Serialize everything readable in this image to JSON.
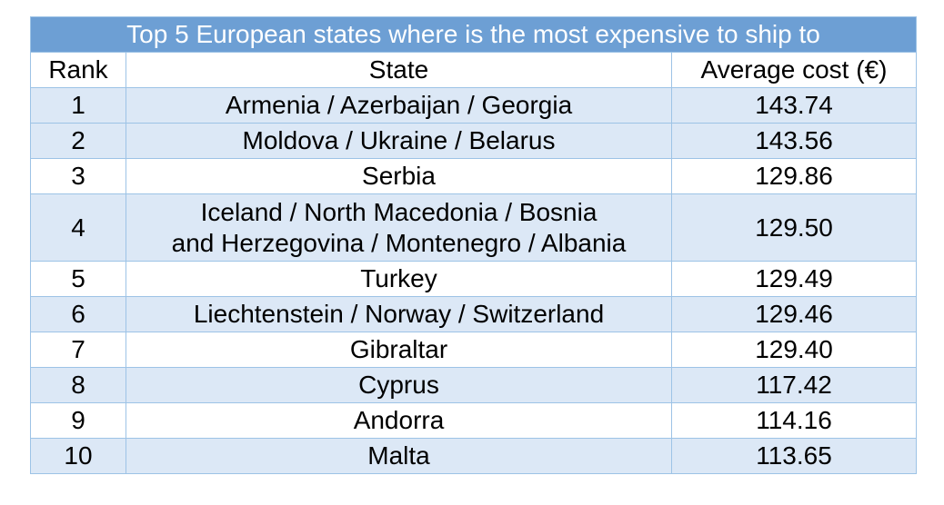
{
  "title": "Top 5 European states where is the most expensive to ship to",
  "headers": {
    "rank": "Rank",
    "state": "State",
    "cost": "Average cost (€)"
  },
  "rows": [
    {
      "rank": "1",
      "state": "Armenia / Azerbaijan / Georgia",
      "cost": "143.74"
    },
    {
      "rank": "2",
      "state": "Moldova / Ukraine / Belarus",
      "cost": "143.56"
    },
    {
      "rank": "3",
      "state": "Serbia",
      "cost": "129.86"
    },
    {
      "rank": "4",
      "state_line1": "Iceland / North Macedonia / Bosnia",
      "state_line2": "and Herzegovina / Montenegro / Albania",
      "cost": "129.50"
    },
    {
      "rank": "5",
      "state": "Turkey",
      "cost": "129.49"
    },
    {
      "rank": "6",
      "state": "Liechtenstein / Norway / Switzerland",
      "cost": "129.46"
    },
    {
      "rank": "7",
      "state": "Gibraltar",
      "cost": "129.40"
    },
    {
      "rank": "8",
      "state": "Cyprus",
      "cost": "117.42"
    },
    {
      "rank": "9",
      "state": "Andorra",
      "cost": "114.16"
    },
    {
      "rank": "10",
      "state": "Malta",
      "cost": "113.65"
    }
  ],
  "colors": {
    "title_bg": "#6d9fd4",
    "stripe_bg": "#dce8f6",
    "border": "#9dc3e6"
  }
}
